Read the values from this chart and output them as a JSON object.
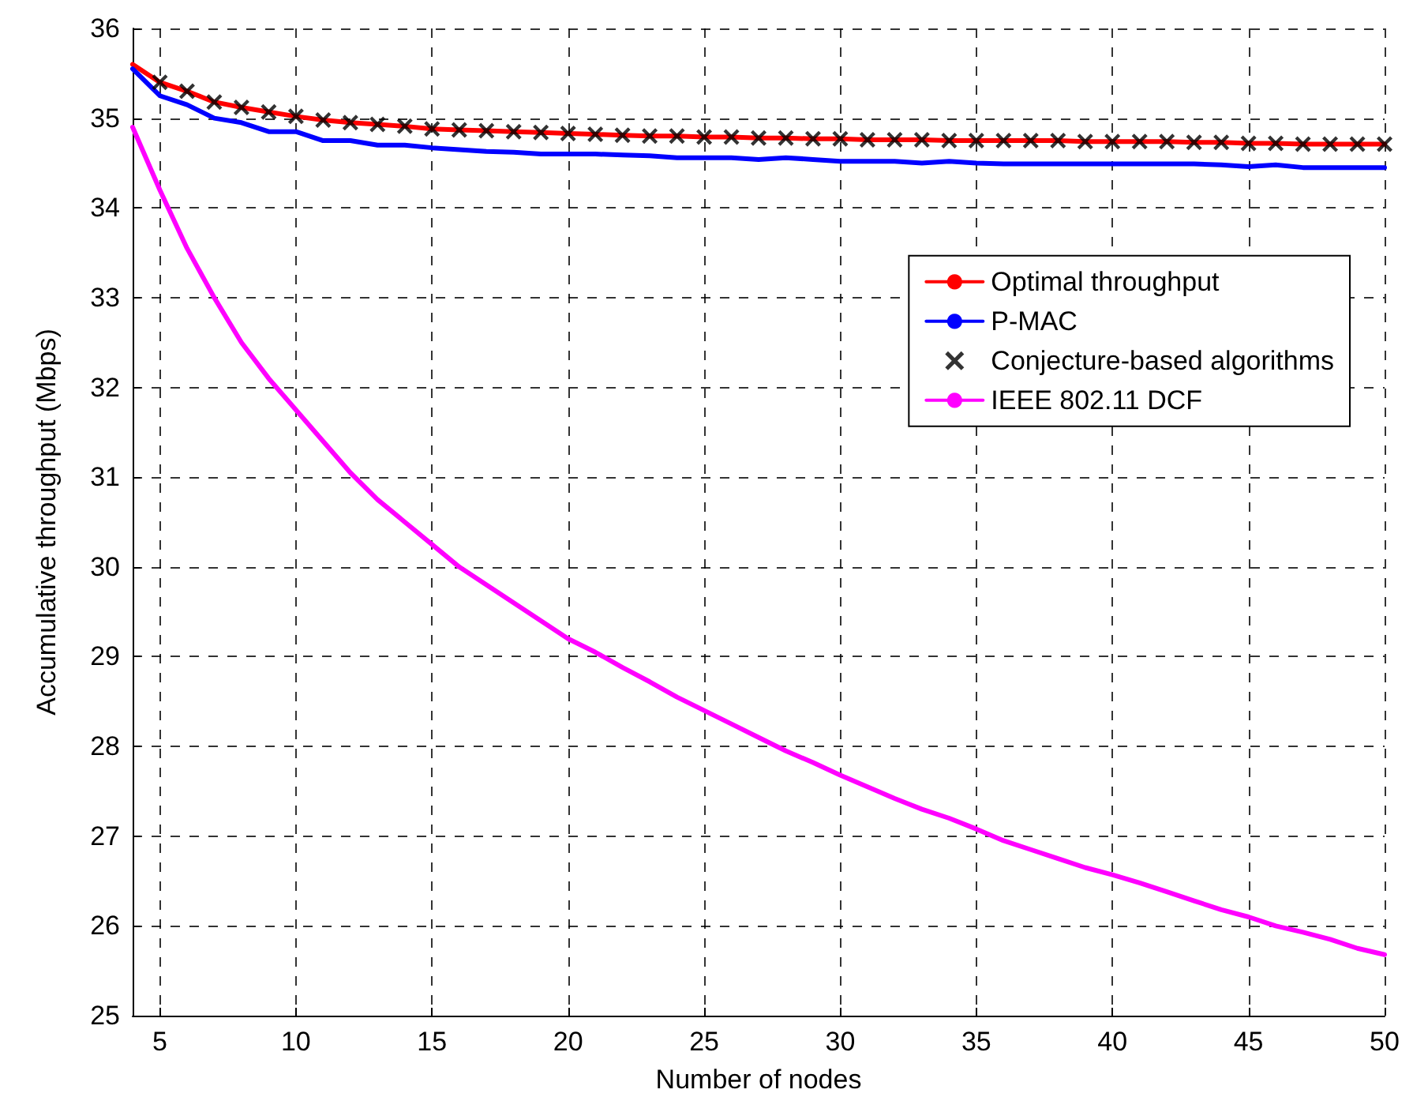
{
  "chart_data": {
    "type": "line",
    "xlabel": "Number of nodes",
    "ylabel": "Accumulative throughput (Mbps)",
    "x": [
      4,
      5,
      6,
      7,
      8,
      9,
      10,
      11,
      12,
      13,
      14,
      15,
      16,
      17,
      18,
      19,
      20,
      21,
      22,
      23,
      24,
      25,
      26,
      27,
      28,
      29,
      30,
      31,
      32,
      33,
      34,
      35,
      36,
      37,
      38,
      39,
      40,
      41,
      42,
      43,
      44,
      45,
      46,
      47,
      48,
      49,
      50
    ],
    "series": [
      {
        "name": "Optimal throughput",
        "color": "#ff0000",
        "values": [
          35.6,
          35.4,
          35.3,
          35.18,
          35.12,
          35.07,
          35.02,
          34.98,
          34.95,
          34.93,
          34.91,
          34.88,
          34.87,
          34.86,
          34.85,
          34.84,
          34.83,
          34.82,
          34.81,
          34.8,
          34.8,
          34.79,
          34.79,
          34.78,
          34.78,
          34.77,
          34.77,
          34.76,
          34.76,
          34.76,
          34.75,
          34.75,
          34.75,
          34.75,
          34.75,
          34.74,
          34.74,
          34.74,
          34.74,
          34.73,
          34.73,
          34.72,
          34.72,
          34.71,
          34.71,
          34.71,
          34.71
        ]
      },
      {
        "name": "P-MAC",
        "color": "#0000ff",
        "values": [
          35.55,
          35.25,
          35.15,
          35.0,
          34.95,
          34.85,
          34.85,
          34.75,
          34.75,
          34.7,
          34.7,
          34.67,
          34.65,
          34.63,
          34.62,
          34.6,
          34.6,
          34.6,
          34.59,
          34.58,
          34.56,
          34.56,
          34.56,
          34.54,
          34.56,
          34.54,
          34.52,
          34.52,
          34.52,
          34.5,
          34.52,
          34.5,
          34.49,
          34.49,
          34.49,
          34.49,
          34.49,
          34.49,
          34.49,
          34.49,
          34.48,
          34.46,
          34.48,
          34.45,
          34.45,
          34.45,
          34.45
        ]
      },
      {
        "name": "Conjecture-based algorithms",
        "type": "scatter",
        "marker": "cross",
        "color": "#000000",
        "x": [
          5,
          6,
          7,
          8,
          9,
          10,
          11,
          12,
          13,
          14,
          15,
          16,
          17,
          18,
          19,
          20,
          21,
          22,
          23,
          24,
          25,
          26,
          27,
          28,
          29,
          30,
          31,
          32,
          33,
          34,
          35,
          36,
          37,
          38,
          39,
          40,
          41,
          42,
          43,
          44,
          45,
          46,
          47,
          48,
          49,
          50
        ],
        "values": [
          35.4,
          35.3,
          35.18,
          35.12,
          35.07,
          35.02,
          34.98,
          34.95,
          34.93,
          34.91,
          34.88,
          34.87,
          34.86,
          34.85,
          34.84,
          34.83,
          34.82,
          34.81,
          34.8,
          34.8,
          34.79,
          34.79,
          34.78,
          34.78,
          34.77,
          34.77,
          34.76,
          34.76,
          34.76,
          34.75,
          34.75,
          34.75,
          34.75,
          34.75,
          34.74,
          34.74,
          34.74,
          34.74,
          34.73,
          34.73,
          34.72,
          34.72,
          34.71,
          34.71,
          34.71,
          34.71
        ]
      },
      {
        "name": "IEEE 802.11 DCF",
        "color": "#ff00ff",
        "values": [
          34.9,
          34.2,
          33.55,
          33.0,
          32.5,
          32.1,
          31.75,
          31.4,
          31.05,
          30.75,
          30.5,
          30.25,
          30.0,
          29.8,
          29.6,
          29.4,
          29.2,
          29.05,
          28.88,
          28.72,
          28.55,
          28.4,
          28.25,
          28.1,
          27.95,
          27.82,
          27.68,
          27.55,
          27.42,
          27.3,
          27.2,
          27.08,
          26.95,
          26.85,
          26.75,
          26.65,
          26.57,
          26.48,
          26.38,
          26.28,
          26.18,
          26.1,
          26.0,
          25.93,
          25.85,
          25.75,
          25.68
        ]
      }
    ],
    "xlim": [
      4,
      50
    ],
    "xticks": [
      5,
      10,
      15,
      20,
      25,
      30,
      35,
      40,
      45,
      50
    ],
    "ylim": [
      25,
      36
    ],
    "yticks": [
      25,
      26,
      27,
      28,
      29,
      30,
      31,
      32,
      33,
      34,
      35,
      36
    ],
    "grid": true,
    "legend": "top right",
    "line_style": "solid"
  }
}
